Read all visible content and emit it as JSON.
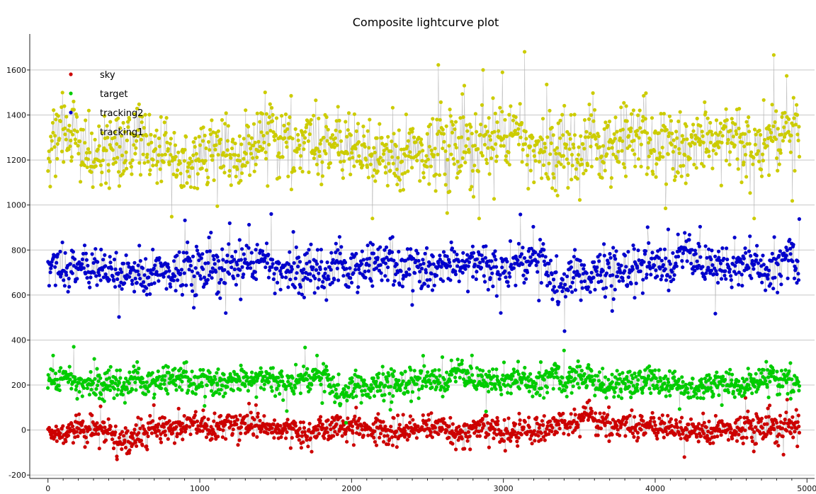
{
  "chart_data": {
    "type": "scatter",
    "title": "Composite lightcurve plot",
    "xlabel": "",
    "ylabel": "",
    "xlim": [
      -120,
      5050
    ],
    "ylim": [
      -215,
      1760
    ],
    "xticks": [
      0,
      1000,
      2000,
      3000,
      4000,
      5000
    ],
    "yticks": [
      -200,
      0,
      200,
      400,
      600,
      800,
      1000,
      1200,
      1400,
      1600
    ],
    "grid": "horizontal",
    "legend_position": "top-left",
    "x_range": [
      0,
      4950
    ],
    "series": [
      {
        "name": "sky",
        "color": "#cc0000",
        "mean": 10,
        "spread": 38,
        "min": -130,
        "max": 150,
        "points": 1400
      },
      {
        "name": "target",
        "color": "#00cc00",
        "mean": 210,
        "spread": 40,
        "min": 30,
        "max": 370,
        "points": 1400
      },
      {
        "name": "tracking2",
        "color": "#0000cc",
        "mean": 715,
        "spread": 62,
        "min": 420,
        "max": 960,
        "points": 1300
      },
      {
        "name": "tracking1",
        "color": "#cccc00",
        "mean": 1255,
        "spread": 105,
        "min": 940,
        "max": 1700,
        "points": 1300
      }
    ]
  }
}
